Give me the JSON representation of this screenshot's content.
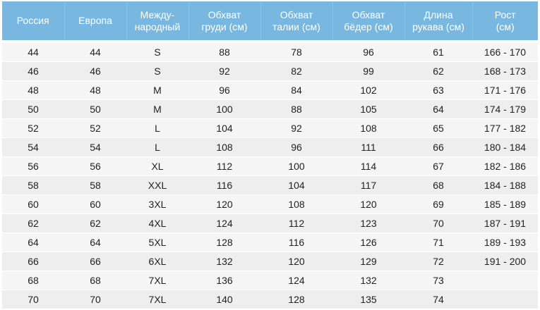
{
  "table": {
    "headers": [
      [
        "Россия"
      ],
      [
        "Европа"
      ],
      [
        "Между-",
        "народный"
      ],
      [
        "Обхват",
        "груди (см)"
      ],
      [
        "Обхват",
        "талии (см)"
      ],
      [
        "Обхват",
        "бёдер (см)"
      ],
      [
        "Длина",
        "рукава (см)"
      ],
      [
        "Рост",
        "(см)"
      ]
    ],
    "rows": [
      [
        "44",
        "44",
        "S",
        "88",
        "78",
        "96",
        "61",
        "166 - 170"
      ],
      [
        "46",
        "46",
        "S",
        "92",
        "82",
        "99",
        "62",
        "168 - 173"
      ],
      [
        "48",
        "48",
        "M",
        "96",
        "84",
        "102",
        "63",
        "171 - 176"
      ],
      [
        "50",
        "50",
        "M",
        "100",
        "88",
        "105",
        "64",
        "174 - 179"
      ],
      [
        "52",
        "52",
        "L",
        "104",
        "92",
        "108",
        "65",
        "177 - 182"
      ],
      [
        "54",
        "54",
        "L",
        "108",
        "96",
        "111",
        "66",
        "180 - 184"
      ],
      [
        "56",
        "56",
        "XL",
        "112",
        "100",
        "114",
        "67",
        "182 - 186"
      ],
      [
        "58",
        "58",
        "XXL",
        "116",
        "104",
        "117",
        "68",
        "184 - 188"
      ],
      [
        "60",
        "60",
        "3XL",
        "120",
        "108",
        "120",
        "69",
        "185 - 189"
      ],
      [
        "62",
        "62",
        "4XL",
        "124",
        "112",
        "123",
        "70",
        "187 - 191"
      ],
      [
        "64",
        "64",
        "5XL",
        "128",
        "116",
        "126",
        "71",
        "189 - 193"
      ],
      [
        "66",
        "66",
        "6XL",
        "132",
        "120",
        "129",
        "72",
        "191 - 200"
      ],
      [
        "68",
        "68",
        "7XL",
        "136",
        "124",
        "132",
        "73",
        ""
      ],
      [
        "70",
        "70",
        "7XL",
        "140",
        "128",
        "135",
        "74",
        ""
      ]
    ]
  },
  "colors": {
    "header_bg": "#78b8e0",
    "header_text": "#ffffff",
    "row_even": "#eeeeee",
    "row_odd": "#f5f5f5"
  }
}
